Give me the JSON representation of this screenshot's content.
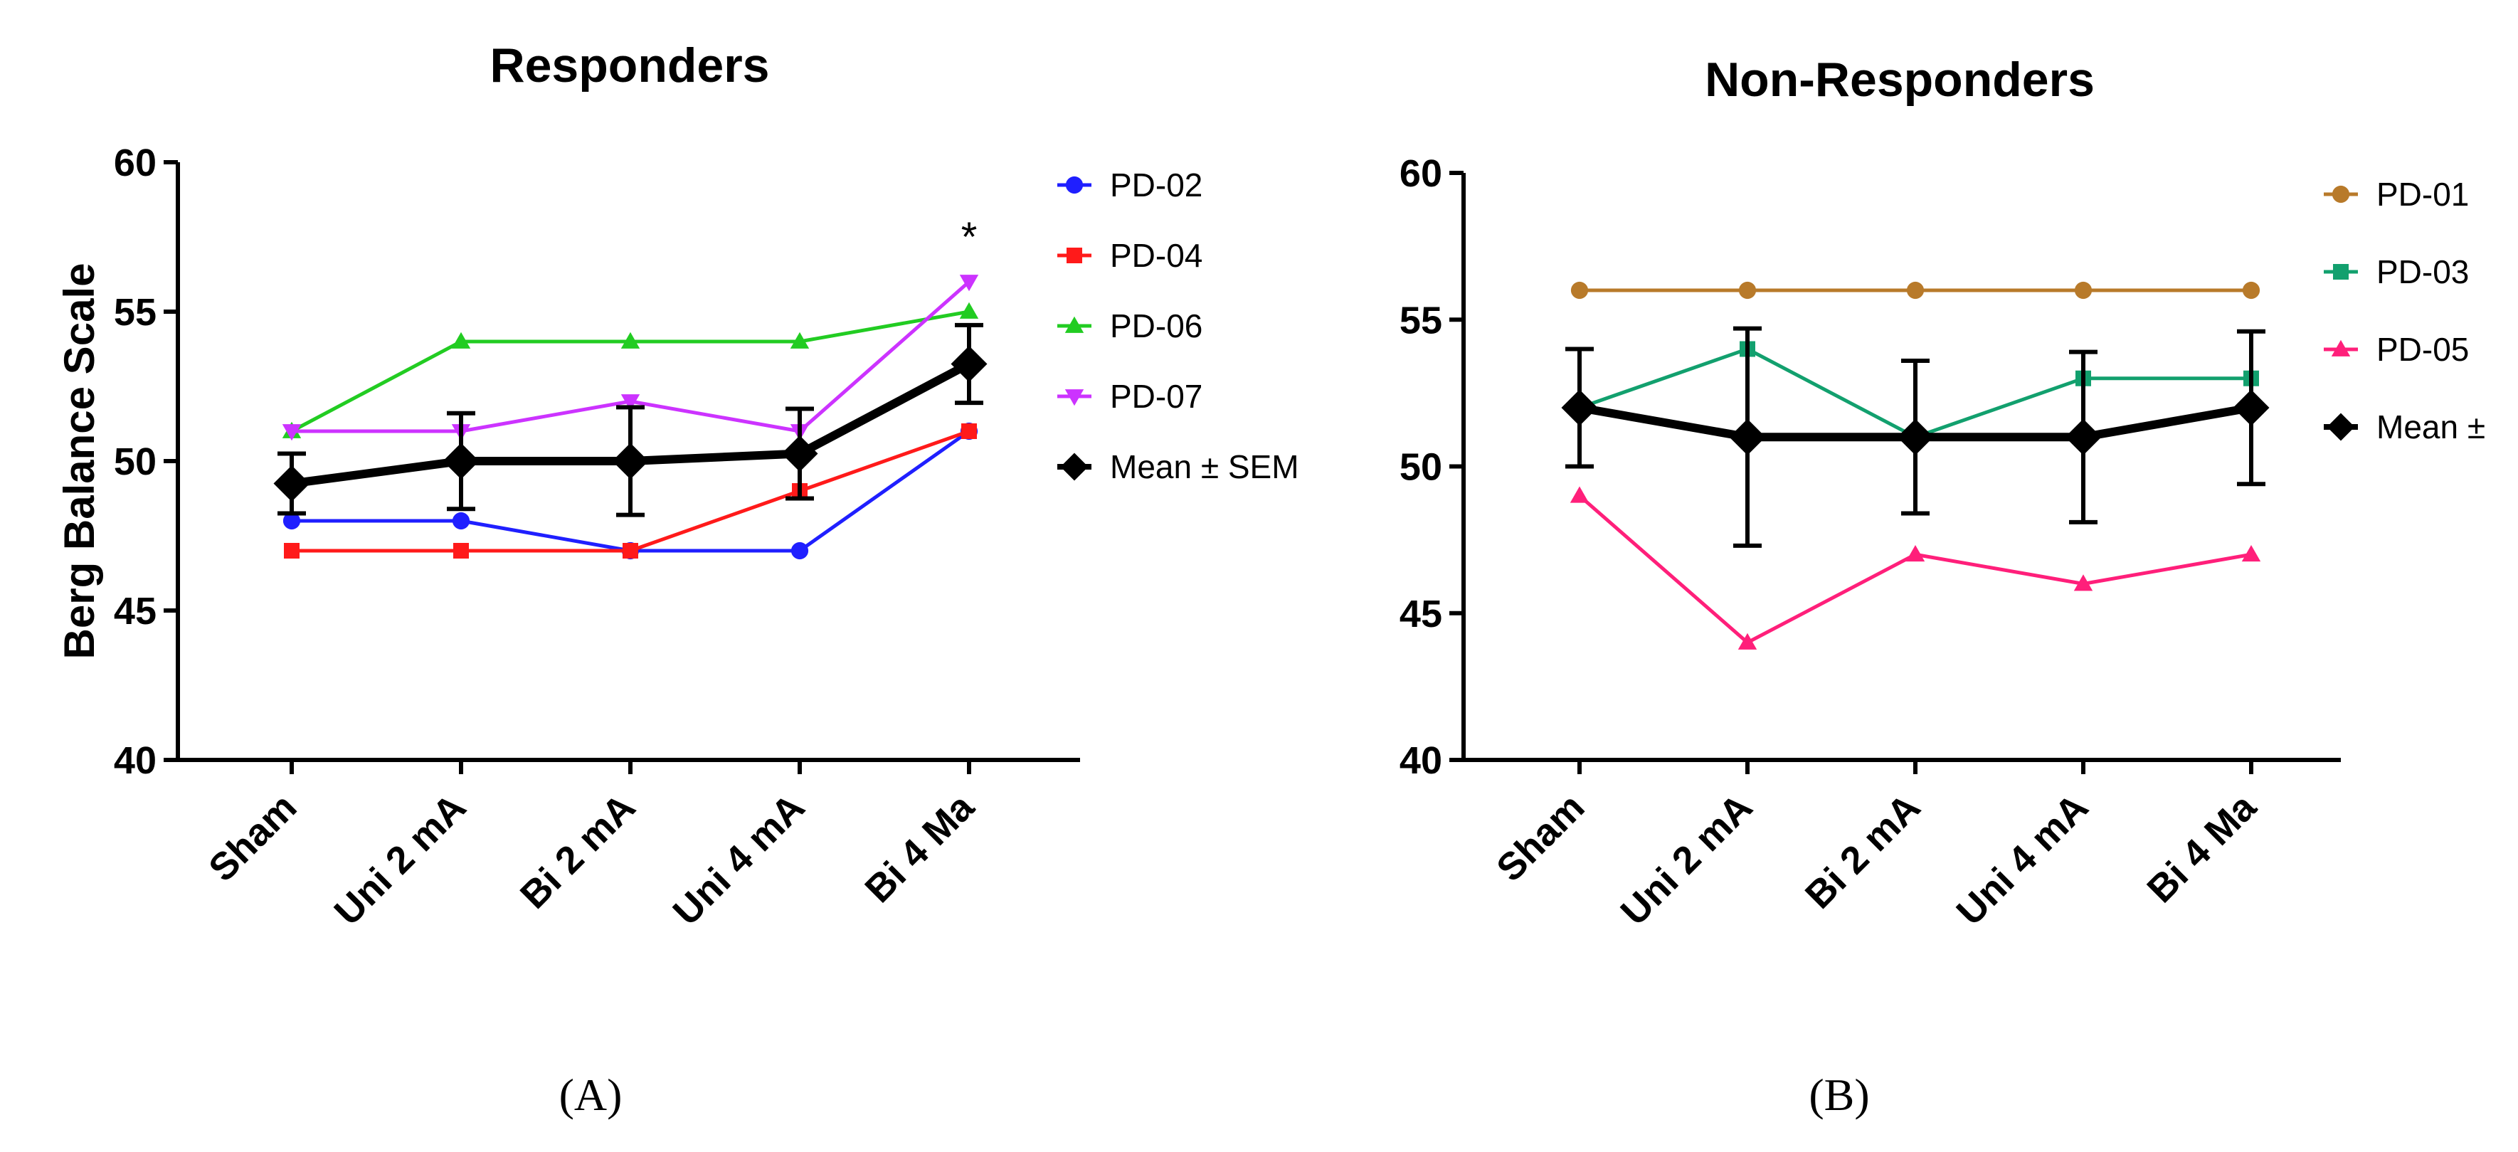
{
  "chart_data": [
    {
      "type": "line",
      "panel_label": "(A)",
      "title": "Responders",
      "ylabel": "Berg Balance Scale",
      "xlabel": "",
      "ylim": [
        40,
        60
      ],
      "yticks": [
        40,
        45,
        50,
        55,
        60
      ],
      "categories": [
        "Sham",
        "Uni 2 mA",
        "Bi 2 mA",
        "Uni 4 mA",
        "Bi 4 Ma"
      ],
      "legend_position": "right",
      "series": [
        {
          "name": "PD-02",
          "color": "#1f1fff",
          "marker": "circle",
          "values": [
            48,
            48,
            47,
            47,
            51
          ]
        },
        {
          "name": "PD-04",
          "color": "#ff1a1a",
          "marker": "square",
          "values": [
            47,
            47,
            47,
            49,
            51
          ]
        },
        {
          "name": "PD-06",
          "color": "#22cc22",
          "marker": "triangle-up",
          "values": [
            51,
            54,
            54,
            54,
            55
          ]
        },
        {
          "name": "PD-07",
          "color": "#cc33ff",
          "marker": "triangle-down",
          "values": [
            51,
            51,
            52,
            51,
            56
          ]
        },
        {
          "name": "Mean ± SEM",
          "color": "#000000",
          "marker": "diamond",
          "thick": true,
          "values": [
            49.25,
            50.0,
            50.0,
            50.25,
            53.25
          ],
          "errors": [
            1.0,
            1.6,
            1.8,
            1.5,
            1.3
          ]
        }
      ],
      "annotations": [
        {
          "text": "*",
          "category": "Bi 4 Ma",
          "value": 57.5
        }
      ]
    },
    {
      "type": "line",
      "panel_label": "(B)",
      "title": "Non-Responders",
      "ylabel": "",
      "xlabel": "",
      "ylim": [
        40,
        60
      ],
      "yticks": [
        40,
        45,
        50,
        55,
        60
      ],
      "categories": [
        "Sham",
        "Uni 2 mA",
        "Bi 2 mA",
        "Uni 4 mA",
        "Bi 4 Ma"
      ],
      "legend_position": "right",
      "series": [
        {
          "name": "PD-01",
          "color": "#b87a2a",
          "marker": "circle",
          "values": [
            56,
            56,
            56,
            56,
            56
          ]
        },
        {
          "name": "PD-03",
          "color": "#12a06e",
          "marker": "square",
          "values": [
            52,
            54,
            51,
            53,
            53
          ]
        },
        {
          "name": "PD-05",
          "color": "#ff1f7a",
          "marker": "triangle-up",
          "values": [
            49,
            44,
            47,
            46,
            47
          ]
        },
        {
          "name": "Mean ±",
          "color": "#000000",
          "marker": "diamond",
          "thick": true,
          "values": [
            52,
            51,
            51,
            51,
            52
          ],
          "errors": [
            2.0,
            3.7,
            2.6,
            2.9,
            2.6
          ]
        }
      ],
      "annotations": []
    }
  ]
}
